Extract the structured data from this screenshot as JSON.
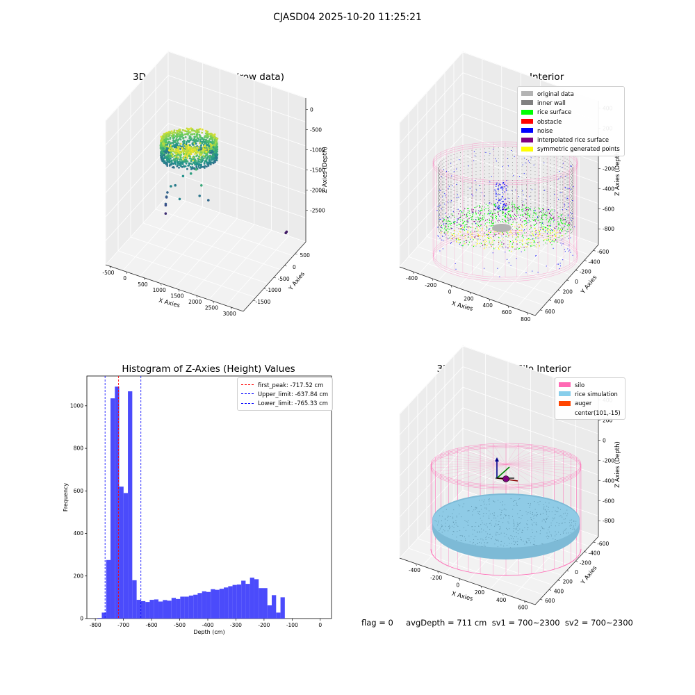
{
  "figure": {
    "suptitle": "CJASD04 2025-10-20 11:25:21",
    "footer": "flag = 0     avgDepth = 711 cm  sv1 = 700~2300  sv2 = 700~2300"
  },
  "legends": {
    "classify": [
      {
        "label": "original data",
        "color": "#b3b3b3"
      },
      {
        "label": "inner wall",
        "color": "#808080"
      },
      {
        "label": "rice surface",
        "color": "#00ff00"
      },
      {
        "label": "obstacle",
        "color": "#ff0000"
      },
      {
        "label": "noise",
        "color": "#0000ff"
      },
      {
        "label": "interpolated rice surface",
        "color": "#800080"
      },
      {
        "label": "symmetric generated points",
        "color": "#ffff00"
      }
    ],
    "histogram": [
      {
        "label": "first_peak: -717.52 cm",
        "color": "#ff0000"
      },
      {
        "label": "Upper_limit: -637.84 cm",
        "color": "#0000ff"
      },
      {
        "label": "Lower_limit: -765.33 cm",
        "color": "#0000ff"
      }
    ],
    "simulation": [
      {
        "label": "silo",
        "color": "#ff69b4"
      },
      {
        "label": "rice simulation",
        "color": "#87ceeb"
      },
      {
        "label": "auger",
        "color": "#ff4500"
      },
      {
        "label": "center(101,-15)",
        "color": ""
      }
    ]
  },
  "chart_data": [
    {
      "type": "scatter",
      "title": "3D Plot of Silo Interior(row data)",
      "xlabel": "X Axies",
      "ylabel": "Y Axies",
      "zlabel": "Z Axies (Depth)",
      "x_ticks": [
        "-500",
        "0",
        "500",
        "1000",
        "1500",
        "2000",
        "2500",
        "3000"
      ],
      "y_ticks": [
        "500",
        "0",
        "-500",
        "-1000",
        "-1500"
      ],
      "z_ticks": [
        "0",
        "-500",
        "-1000",
        "-1500",
        "-2000",
        "-2500"
      ],
      "xlim": [
        -650,
        3300
      ],
      "ylim": [
        -1700,
        700
      ],
      "zlim": [
        -3000,
        200
      ],
      "colormap": "viridis",
      "outliers": [
        {
          "x": 1500,
          "y": 100,
          "z": -700
        },
        {
          "x": 1800,
          "y": 300,
          "z": -850
        },
        {
          "x": 1200,
          "y": -100,
          "z": -1000
        },
        {
          "x": 900,
          "y": -200,
          "z": -1200
        },
        {
          "x": 700,
          "y": 0,
          "z": -1350
        },
        {
          "x": 1100,
          "y": 200,
          "z": -1400
        },
        {
          "x": 600,
          "y": -300,
          "z": -1550
        },
        {
          "x": 500,
          "y": -100,
          "z": -1700
        },
        {
          "x": 1300,
          "y": -300,
          "z": -1600
        },
        {
          "x": 300,
          "y": -400,
          "z": -1850
        },
        {
          "x": 400,
          "y": -200,
          "z": -1950
        },
        {
          "x": 200,
          "y": -500,
          "z": -2050
        },
        {
          "x": 250,
          "y": -400,
          "z": -2150
        },
        {
          "x": 1400,
          "y": -500,
          "z": -1800
        },
        {
          "x": 100,
          "y": -600,
          "z": -2500
        },
        {
          "x": 2900,
          "y": -1500,
          "z": -2750
        },
        {
          "x": 2950,
          "y": -1400,
          "z": -2700
        }
      ]
    },
    {
      "type": "scatter",
      "title": "3D classify of Silo Interior",
      "xlabel": "X Axies",
      "ylabel": "Y Axies",
      "zlabel": "Z Axies (Depth)",
      "x_ticks": [
        "-400",
        "-200",
        "0",
        "200",
        "400",
        "600",
        "800"
      ],
      "y_ticks": [
        "600",
        "400",
        "200",
        "0",
        "-200",
        "-400",
        "-600"
      ],
      "z_ticks": [
        "400",
        "200",
        "0",
        "-200",
        "-400",
        "-600",
        "-800"
      ],
      "xlim": [
        -550,
        850
      ],
      "ylim": [
        -700,
        700
      ],
      "zlim": [
        -950,
        420
      ]
    },
    {
      "type": "bar",
      "title": "Histogram of Z-Axies (Height) Values",
      "xlabel": "Depth (cm)",
      "ylabel": "Frequency",
      "xlim": [
        -830,
        40
      ],
      "ylim": [
        0,
        1140
      ],
      "x_ticks": [
        -800,
        -700,
        -600,
        -500,
        -400,
        -300,
        -200,
        -100,
        0
      ],
      "y_ticks": [
        0,
        200,
        400,
        600,
        800,
        1000
      ],
      "bin_start": -792.5,
      "bin_width": 15.5,
      "values": [
        3,
        28,
        275,
        1035,
        1090,
        620,
        590,
        1068,
        180,
        88,
        82,
        78,
        88,
        90,
        80,
        87,
        84,
        97,
        92,
        103,
        103,
        108,
        112,
        120,
        128,
        125,
        138,
        135,
        140,
        146,
        152,
        158,
        160,
        178,
        163,
        192,
        185,
        143,
        143,
        62,
        110,
        28,
        100
      ],
      "vlines": [
        {
          "x": -717.52,
          "color": "#ff0000"
        },
        {
          "x": -637.84,
          "color": "#0000ff"
        },
        {
          "x": -765.33,
          "color": "#0000ff"
        }
      ]
    },
    {
      "type": "scatter",
      "title": "3D simulation of Silo Interior",
      "xlabel": "X Axies",
      "ylabel": "Y Axies",
      "zlabel": "Z Axies (Depth)",
      "x_ticks": [
        "-400",
        "-200",
        "0",
        "200",
        "400",
        "600"
      ],
      "y_ticks": [
        "600",
        "400",
        "200",
        "0",
        "-200",
        "-400",
        "-600"
      ],
      "z_ticks": [
        "400",
        "200",
        "0",
        "-200",
        "-400",
        "-600",
        "-800"
      ],
      "xlim": [
        -550,
        750
      ],
      "ylim": [
        -700,
        700
      ],
      "zlim": [
        -950,
        480
      ]
    }
  ]
}
